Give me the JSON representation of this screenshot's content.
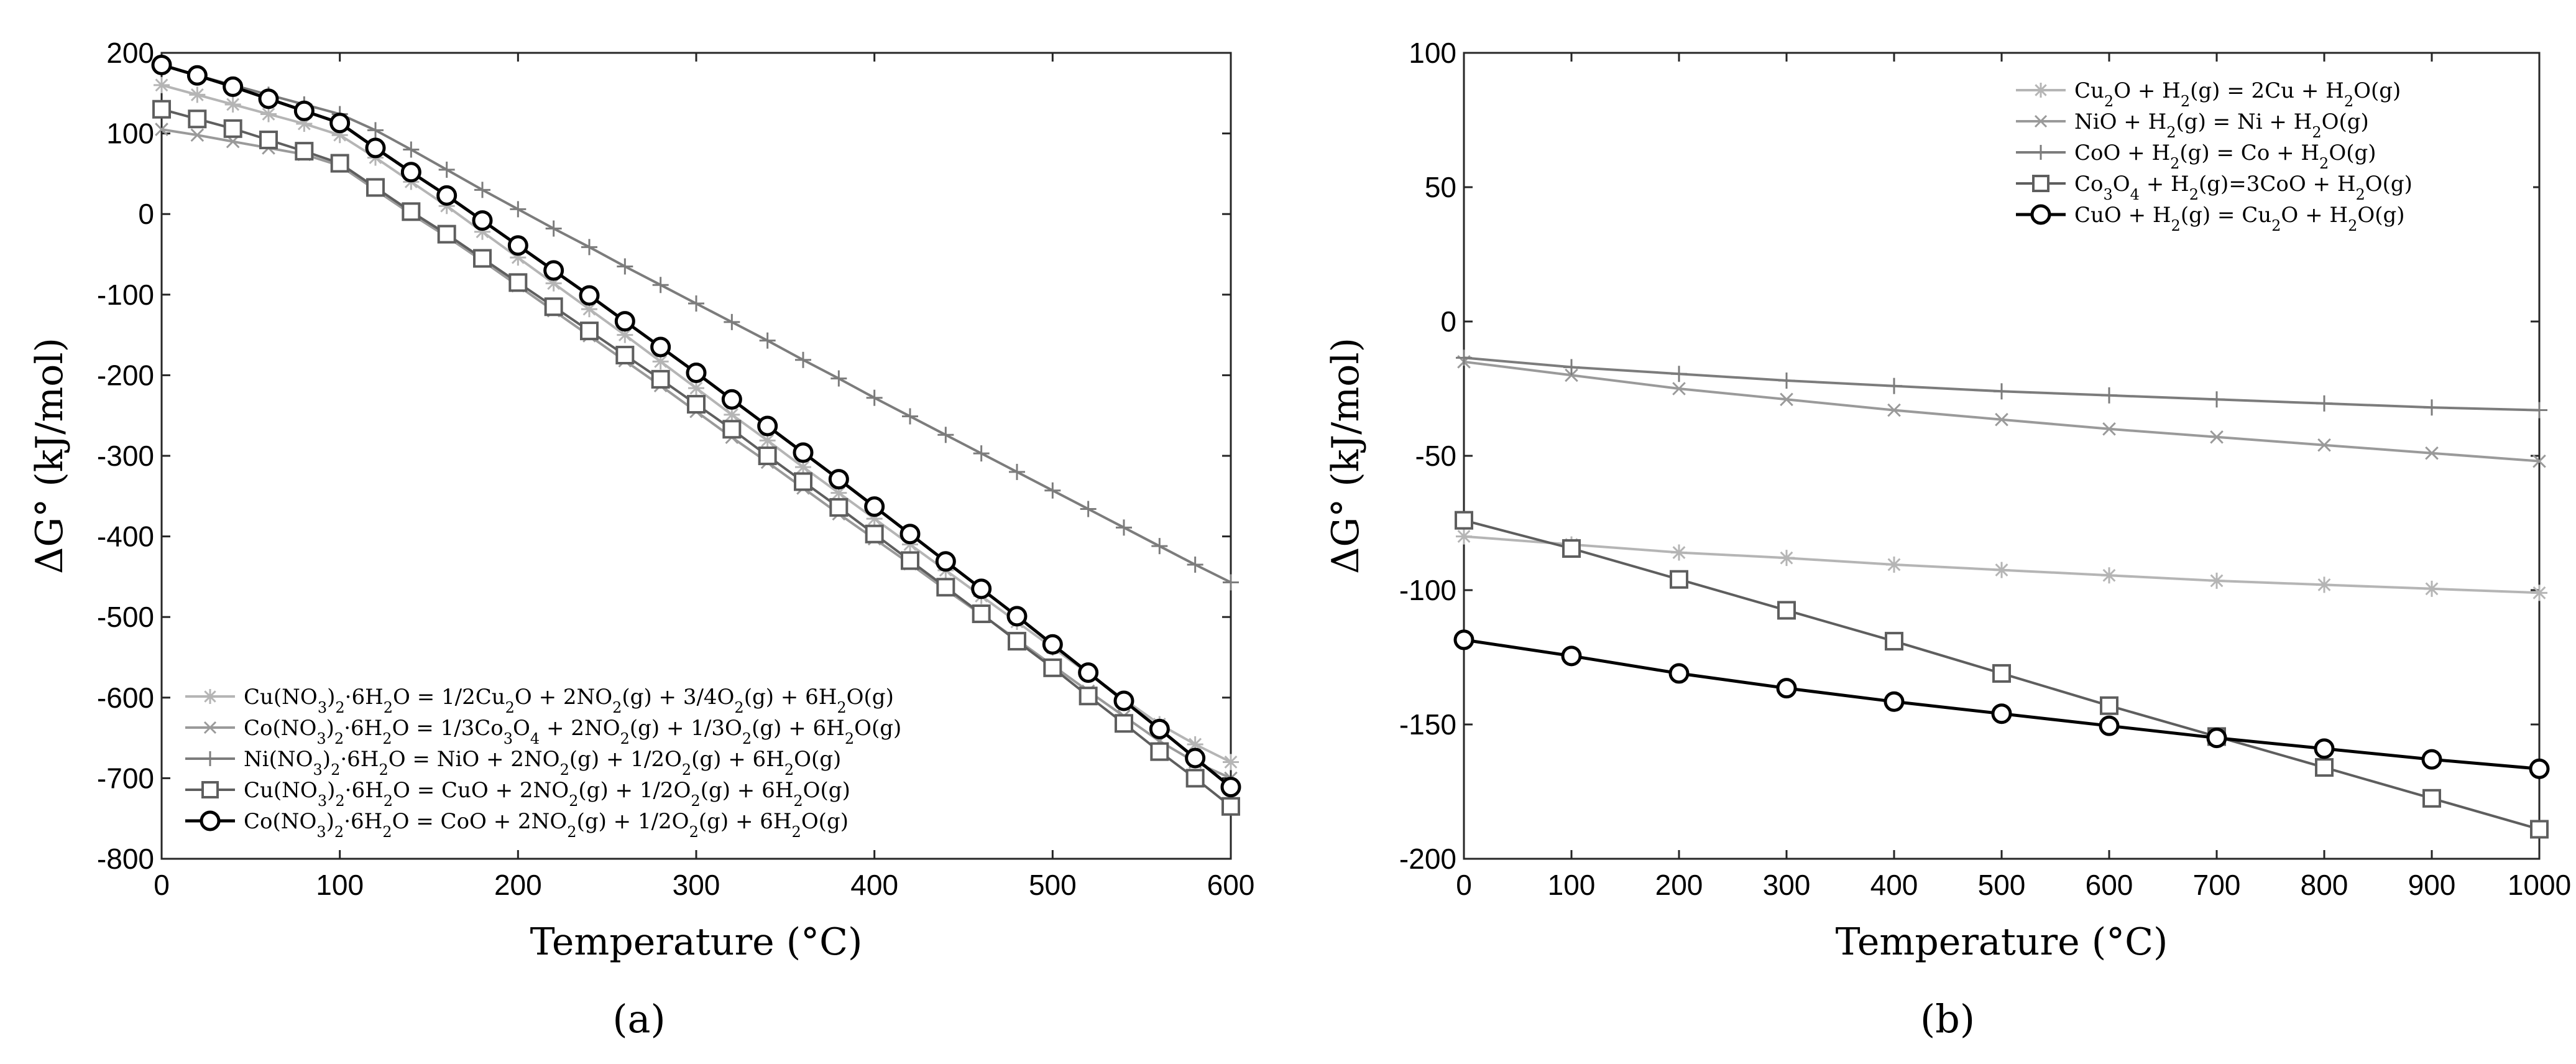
{
  "chart_data": [
    {
      "type": "line",
      "panel_label": "(a)",
      "xlabel": "Temperature (°C)",
      "ylabel": "ΔG° (kJ/mol)",
      "xlim": [
        0,
        600
      ],
      "ylim": [
        -800,
        200
      ],
      "xticks": [
        0,
        100,
        200,
        300,
        400,
        500,
        600
      ],
      "yticks": [
        -800,
        -700,
        -600,
        -500,
        -400,
        -300,
        -200,
        -100,
        0,
        100,
        200
      ],
      "xtick_labels": [
        "0",
        "100",
        "200",
        "300",
        "400",
        "500",
        "600"
      ],
      "ytick_labels": [
        "-800",
        "-700",
        "-600",
        "-500",
        "-400",
        "-300",
        "-200",
        "-100",
        "0",
        "100",
        "200"
      ],
      "legend_location": "bottom-left",
      "series": [
        {
          "name": "Cu(NO3)2·6H2O = 1/2Cu2O + 2NO2(g) + 3/4O2(g) + 6H2O(g)",
          "label_parts": [
            [
              "Cu(NO",
              ""
            ],
            [
              "3",
              "sub"
            ],
            [
              ")",
              ""
            ],
            [
              "2",
              "sub"
            ],
            [
              "·6H",
              ""
            ],
            [
              "2",
              "sub"
            ],
            [
              "O = 1/2Cu",
              ""
            ],
            [
              "2",
              "sub"
            ],
            [
              "O + 2NO",
              ""
            ],
            [
              "2",
              "sub"
            ],
            [
              "(g) + 3/4O",
              ""
            ],
            [
              "2",
              "sub"
            ],
            [
              "(g) + 6H",
              ""
            ],
            [
              "2",
              "sub"
            ],
            [
              "O(g)",
              ""
            ]
          ],
          "color": "#b5b5b5",
          "marker": "asterisk",
          "x": [
            0,
            20,
            40,
            60,
            80,
            100,
            120,
            140,
            160,
            180,
            200,
            220,
            240,
            260,
            280,
            300,
            320,
            340,
            360,
            380,
            400,
            420,
            440,
            460,
            480,
            500,
            520,
            540,
            560,
            580,
            600
          ],
          "y": [
            160,
            148,
            136,
            124,
            112,
            98,
            70,
            40,
            10,
            -22,
            -54,
            -86,
            -118,
            -150,
            -183,
            -216,
            -249,
            -281,
            -314,
            -346,
            -378,
            -410,
            -442,
            -474,
            -506,
            -538,
            -570,
            -602,
            -633,
            -658,
            -680
          ]
        },
        {
          "name": "Co(NO3)2·6H2O = 1/3Co3O4 + 2NO2(g) + 1/3O2(g) + 6H2O(g)",
          "label_parts": [
            [
              "Co(NO",
              ""
            ],
            [
              "3",
              "sub"
            ],
            [
              ")",
              ""
            ],
            [
              "2",
              "sub"
            ],
            [
              "·6H",
              ""
            ],
            [
              "2",
              "sub"
            ],
            [
              "O = 1/3Co",
              ""
            ],
            [
              "3",
              "sub"
            ],
            [
              "O",
              ""
            ],
            [
              "4",
              "sub"
            ],
            [
              " + 2NO",
              ""
            ],
            [
              "2",
              "sub"
            ],
            [
              "(g) + 1/3O",
              ""
            ],
            [
              "2",
              "sub"
            ],
            [
              "(g) + 6H",
              ""
            ],
            [
              "2",
              "sub"
            ],
            [
              "O(g)",
              ""
            ]
          ],
          "color": "#9a9a9a",
          "marker": "cross",
          "x": [
            0,
            20,
            40,
            60,
            80,
            100,
            120,
            140,
            160,
            180,
            200,
            220,
            240,
            260,
            280,
            300,
            320,
            340,
            360,
            380,
            400,
            420,
            440,
            460,
            480,
            500,
            520,
            540,
            560,
            580,
            600
          ],
          "y": [
            105,
            98,
            90,
            82,
            74,
            60,
            30,
            0,
            -28,
            -58,
            -89,
            -120,
            -151,
            -182,
            -213,
            -245,
            -277,
            -308,
            -340,
            -372,
            -403,
            -434,
            -466,
            -497,
            -528,
            -560,
            -592,
            -623,
            -654,
            -680,
            -700
          ]
        },
        {
          "name": "Ni(NO3)2·6H2O = NiO + 2NO2(g) + 1/2O2(g) + 6H2O(g)",
          "label_parts": [
            [
              "Ni(NO",
              ""
            ],
            [
              "3",
              "sub"
            ],
            [
              ")",
              ""
            ],
            [
              "2",
              "sub"
            ],
            [
              "·6H",
              ""
            ],
            [
              "2",
              "sub"
            ],
            [
              "O = NiO + 2NO",
              ""
            ],
            [
              "2",
              "sub"
            ],
            [
              "(g) + 1/2O",
              ""
            ],
            [
              "2",
              "sub"
            ],
            [
              "(g) + 6H",
              ""
            ],
            [
              "2",
              "sub"
            ],
            [
              "O(g)",
              ""
            ]
          ],
          "color": "#7c7c7c",
          "marker": "plus",
          "x": [
            0,
            20,
            40,
            60,
            80,
            100,
            120,
            140,
            160,
            180,
            200,
            220,
            240,
            260,
            280,
            300,
            320,
            340,
            360,
            380,
            400,
            420,
            440,
            460,
            480,
            500,
            520,
            540,
            560,
            580,
            600
          ],
          "y": [
            185,
            172,
            160,
            148,
            136,
            124,
            104,
            80,
            55,
            30,
            6,
            -18,
            -41,
            -65,
            -88,
            -111,
            -134,
            -157,
            -181,
            -204,
            -228,
            -251,
            -274,
            -297,
            -320,
            -343,
            -366,
            -389,
            -412,
            -435,
            -457
          ]
        },
        {
          "name": "Cu(NO3)2·6H2O = CuO + 2NO2(g) + 1/2O2(g) + 6H2O(g)",
          "label_parts": [
            [
              "Cu(NO",
              ""
            ],
            [
              "3",
              "sub"
            ],
            [
              ")",
              ""
            ],
            [
              "2",
              "sub"
            ],
            [
              "·6H",
              ""
            ],
            [
              "2",
              "sub"
            ],
            [
              "O = CuO + 2NO",
              ""
            ],
            [
              "2",
              "sub"
            ],
            [
              "(g) + 1/2O",
              ""
            ],
            [
              "2",
              "sub"
            ],
            [
              "(g) + 6H",
              ""
            ],
            [
              "2",
              "sub"
            ],
            [
              "O(g)",
              ""
            ]
          ],
          "color": "#5e5e5e",
          "marker": "square",
          "x": [
            0,
            20,
            40,
            60,
            80,
            100,
            120,
            140,
            160,
            180,
            200,
            220,
            240,
            260,
            280,
            300,
            320,
            340,
            360,
            380,
            400,
            420,
            440,
            460,
            480,
            500,
            520,
            540,
            560,
            580,
            600
          ],
          "y": [
            130,
            118,
            106,
            92,
            78,
            63,
            33,
            3,
            -25,
            -55,
            -85,
            -115,
            -145,
            -175,
            -205,
            -236,
            -267,
            -300,
            -332,
            -364,
            -397,
            -430,
            -463,
            -496,
            -530,
            -563,
            -598,
            -632,
            -667,
            -700,
            -735
          ]
        },
        {
          "name": "Co(NO3)2·6H2O = CoO + 2NO2(g) + 1/2O2(g) + 6H2O(g)",
          "label_parts": [
            [
              "Co(NO",
              ""
            ],
            [
              "3",
              "sub"
            ],
            [
              ")",
              ""
            ],
            [
              "2",
              "sub"
            ],
            [
              "·6H",
              ""
            ],
            [
              "2",
              "sub"
            ],
            [
              "O = CoO + 2NO",
              ""
            ],
            [
              "2",
              "sub"
            ],
            [
              "(g) + 1/2O",
              ""
            ],
            [
              "2",
              "sub"
            ],
            [
              "(g) + 6H",
              ""
            ],
            [
              "2",
              "sub"
            ],
            [
              "O(g)",
              ""
            ]
          ],
          "color": "#000000",
          "marker": "circle",
          "x": [
            0,
            20,
            40,
            60,
            80,
            100,
            120,
            140,
            160,
            180,
            200,
            220,
            240,
            260,
            280,
            300,
            320,
            340,
            360,
            380,
            400,
            420,
            440,
            460,
            480,
            500,
            520,
            540,
            560,
            580,
            600
          ],
          "y": [
            185,
            172,
            158,
            143,
            128,
            113,
            82,
            52,
            23,
            -8,
            -39,
            -70,
            -101,
            -133,
            -165,
            -197,
            -230,
            -263,
            -296,
            -329,
            -363,
            -397,
            -431,
            -465,
            -499,
            -534,
            -569,
            -604,
            -639,
            -675,
            -711
          ]
        }
      ]
    },
    {
      "type": "line",
      "panel_label": "(b)",
      "xlabel": "Temperature (°C)",
      "ylabel": "ΔG° (kJ/mol)",
      "xlim": [
        0,
        1000
      ],
      "ylim": [
        -200,
        100
      ],
      "xticks": [
        0,
        100,
        200,
        300,
        400,
        500,
        600,
        700,
        800,
        900,
        1000
      ],
      "yticks": [
        -200,
        -150,
        -100,
        -50,
        0,
        50,
        100
      ],
      "xtick_labels": [
        "0",
        "100",
        "200",
        "300",
        "400",
        "500",
        "600",
        "700",
        "800",
        "900",
        "1000"
      ],
      "ytick_labels": [
        "-200",
        "-150",
        "-100",
        "-50",
        "0",
        "50",
        "100"
      ],
      "legend_location": "top-right",
      "series": [
        {
          "name": "Cu2O + H2(g) = 2Cu + H2O(g)",
          "label_parts": [
            [
              "Cu",
              ""
            ],
            [
              "2",
              "sub"
            ],
            [
              "O + H",
              ""
            ],
            [
              "2",
              "sub"
            ],
            [
              "(g) = 2Cu + H",
              ""
            ],
            [
              "2",
              "sub"
            ],
            [
              "O(g)",
              ""
            ]
          ],
          "color": "#b5b5b5",
          "marker": "asterisk",
          "x": [
            0,
            100,
            200,
            300,
            400,
            500,
            600,
            700,
            800,
            900,
            1000
          ],
          "y": [
            -80,
            -83,
            -86,
            -88,
            -90.5,
            -92.5,
            -94.5,
            -96.5,
            -98,
            -99.5,
            -101
          ]
        },
        {
          "name": "NiO + H2(g) = Ni + H2O(g)",
          "label_parts": [
            [
              "NiO + H",
              ""
            ],
            [
              "2",
              "sub"
            ],
            [
              "(g) = Ni + H",
              ""
            ],
            [
              "2",
              "sub"
            ],
            [
              "O(g)",
              ""
            ]
          ],
          "color": "#9a9a9a",
          "marker": "cross",
          "x": [
            0,
            100,
            200,
            300,
            400,
            500,
            600,
            700,
            800,
            900,
            1000
          ],
          "y": [
            -15,
            -20,
            -25,
            -29,
            -33,
            -36.5,
            -40,
            -43,
            -46,
            -49,
            -52
          ]
        },
        {
          "name": "CoO + H2(g) = Co + H2O(g)",
          "label_parts": [
            [
              "CoO + H",
              ""
            ],
            [
              "2",
              "sub"
            ],
            [
              "(g) = Co + H",
              ""
            ],
            [
              "2",
              "sub"
            ],
            [
              "O(g)",
              ""
            ]
          ],
          "color": "#7c7c7c",
          "marker": "plus",
          "x": [
            0,
            100,
            200,
            300,
            400,
            500,
            600,
            700,
            800,
            900,
            1000
          ],
          "y": [
            -13.5,
            -17,
            -19.5,
            -22,
            -24,
            -26,
            -27.5,
            -29,
            -30.5,
            -32,
            -33
          ]
        },
        {
          "name": "Co3O4 + H2(g)=3CoO + H2O(g)",
          "label_parts": [
            [
              "Co",
              ""
            ],
            [
              "3",
              "sub"
            ],
            [
              "O",
              ""
            ],
            [
              "4",
              "sub"
            ],
            [
              " + H",
              ""
            ],
            [
              "2",
              "sub"
            ],
            [
              "(g)=3CoO + H",
              ""
            ],
            [
              "2",
              "sub"
            ],
            [
              "O(g)",
              ""
            ]
          ],
          "color": "#5e5e5e",
          "marker": "square",
          "x": [
            0,
            100,
            200,
            300,
            400,
            500,
            600,
            700,
            800,
            900,
            1000
          ],
          "y": [
            -74,
            -84.5,
            -96,
            -107.5,
            -119,
            -131,
            -143,
            -154.5,
            -166,
            -177.5,
            -189
          ]
        },
        {
          "name": "CuO + H2(g) = Cu2O + H2O(g)",
          "label_parts": [
            [
              "CuO + H",
              ""
            ],
            [
              "2",
              "sub"
            ],
            [
              "(g) = Cu",
              ""
            ],
            [
              "2",
              "sub"
            ],
            [
              "O + H",
              ""
            ],
            [
              "2",
              "sub"
            ],
            [
              "O(g)",
              ""
            ]
          ],
          "color": "#000000",
          "marker": "circle",
          "x": [
            0,
            100,
            200,
            300,
            400,
            500,
            600,
            700,
            800,
            900,
            1000
          ],
          "y": [
            -118.5,
            -124.5,
            -131,
            -136.5,
            -141.5,
            -146,
            -150.5,
            -155,
            -159,
            -163,
            -166.5
          ]
        }
      ]
    }
  ]
}
